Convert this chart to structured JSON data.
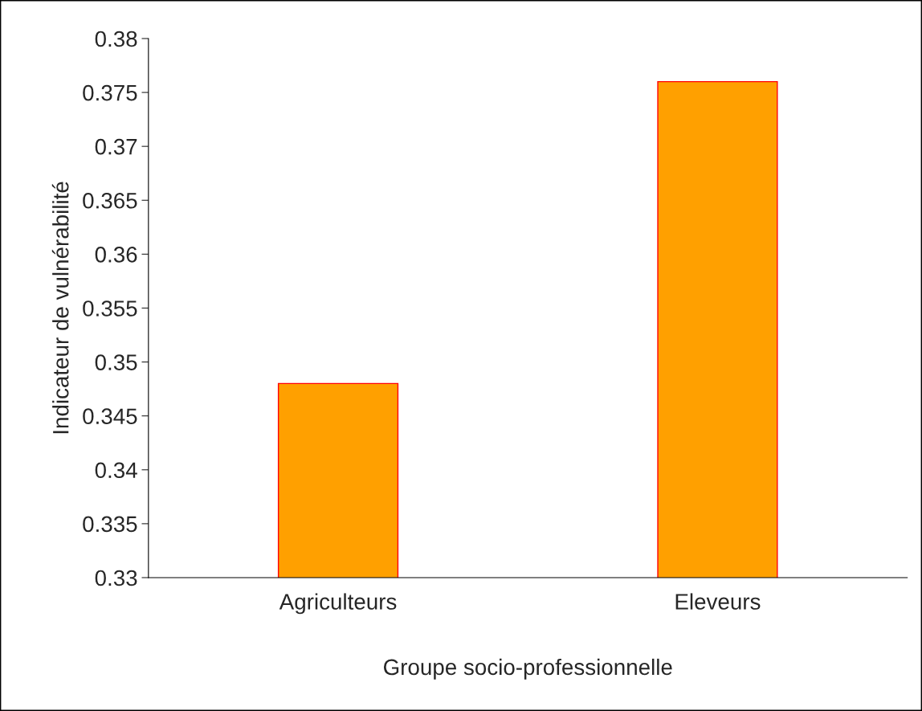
{
  "chart_data": {
    "type": "bar",
    "categories": [
      "Agriculteurs",
      "Eleveurs"
    ],
    "values": [
      0.348,
      0.376
    ],
    "color": "#ffa000",
    "xlabel": "Groupe socio-professionnelle",
    "ylabel": "Indicateur de vulnérabilité",
    "ylim": [
      0.33,
      0.38
    ],
    "yticks": [
      0.33,
      0.335,
      0.34,
      0.345,
      0.35,
      0.355,
      0.36,
      0.365,
      0.37,
      0.375,
      0.38
    ],
    "grid": false,
    "legend": false
  }
}
